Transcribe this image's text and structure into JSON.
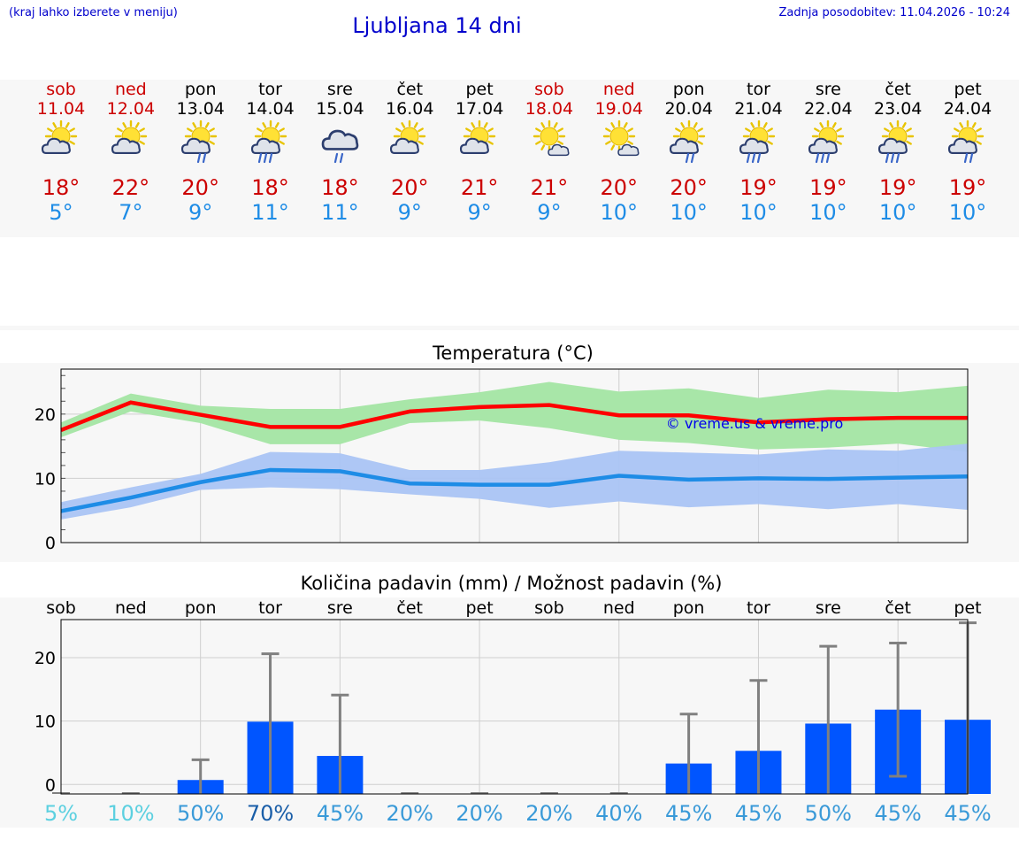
{
  "header": {
    "hint": "(kraj lahko izberete v meniju)",
    "title": "Ljubljana 14 dni",
    "updated_label": "Zadnja posodobitev:",
    "updated_value": "11.04.2026 - 10:24"
  },
  "colors": {
    "accent_blue": "#0000cc",
    "max_temp": "#cc0000",
    "min_temp": "#1e8ce6",
    "max_band": "#a8e6a8",
    "min_band": "#aac4f4",
    "bars": "#0055ff",
    "errorbar": "#808080",
    "watermark": "#0000ee"
  },
  "days": [
    {
      "dow": "sob",
      "date": "11.04",
      "weekend": true,
      "icon": "sun-cloud-icon",
      "tmax": "18°",
      "tmin": "5°",
      "precip_prob": "5%"
    },
    {
      "dow": "ned",
      "date": "12.04",
      "weekend": true,
      "icon": "sun-cloud-icon",
      "tmax": "22°",
      "tmin": "7°",
      "precip_prob": "10%"
    },
    {
      "dow": "pon",
      "date": "13.04",
      "weekend": false,
      "icon": "sun-cloud-rain-icon",
      "tmax": "20°",
      "tmin": "9°",
      "precip_prob": "50%"
    },
    {
      "dow": "tor",
      "date": "14.04",
      "weekend": false,
      "icon": "sun-cloud-heavy-rain-icon",
      "tmax": "18°",
      "tmin": "11°",
      "precip_prob": "70%"
    },
    {
      "dow": "sre",
      "date": "15.04",
      "weekend": false,
      "icon": "cloud-rain-icon",
      "tmax": "18°",
      "tmin": "11°",
      "precip_prob": "45%"
    },
    {
      "dow": "čet",
      "date": "16.04",
      "weekend": false,
      "icon": "sun-cloud-icon",
      "tmax": "20°",
      "tmin": "9°",
      "precip_prob": "20%"
    },
    {
      "dow": "pet",
      "date": "17.04",
      "weekend": false,
      "icon": "sun-cloud-icon",
      "tmax": "21°",
      "tmin": "9°",
      "precip_prob": "20%"
    },
    {
      "dow": "sob",
      "date": "18.04",
      "weekend": true,
      "icon": "sun-cloud-small-icon",
      "tmax": "21°",
      "tmin": "9°",
      "precip_prob": "20%"
    },
    {
      "dow": "ned",
      "date": "19.04",
      "weekend": true,
      "icon": "sun-cloud-small-icon",
      "tmax": "20°",
      "tmin": "10°",
      "precip_prob": "40%"
    },
    {
      "dow": "pon",
      "date": "20.04",
      "weekend": false,
      "icon": "sun-cloud-rain-icon",
      "tmax": "20°",
      "tmin": "10°",
      "precip_prob": "45%"
    },
    {
      "dow": "tor",
      "date": "21.04",
      "weekend": false,
      "icon": "sun-cloud-heavy-rain-icon",
      "tmax": "19°",
      "tmin": "10°",
      "precip_prob": "45%"
    },
    {
      "dow": "sre",
      "date": "22.04",
      "weekend": false,
      "icon": "sun-cloud-heavy-rain-icon",
      "tmax": "19°",
      "tmin": "10°",
      "precip_prob": "50%"
    },
    {
      "dow": "čet",
      "date": "23.04",
      "weekend": false,
      "icon": "sun-cloud-heavy-rain-icon",
      "tmax": "19°",
      "tmin": "10°",
      "precip_prob": "45%"
    },
    {
      "dow": "pet",
      "date": "24.04",
      "weekend": false,
      "icon": "sun-cloud-rain-icon",
      "tmax": "19°",
      "tmin": "10°",
      "precip_prob": "45%"
    }
  ],
  "chart_data": [
    {
      "type": "line",
      "title": "Temperatura (°C)",
      "xlabel": "",
      "ylabel": "",
      "ylim": [
        0,
        27
      ],
      "yticks": [
        0,
        10,
        20
      ],
      "ytick_labels": [
        "0",
        "10",
        "20"
      ],
      "watermark": "© vreme.us & vreme.pro",
      "categories": [
        "11.04",
        "12.04",
        "13.04",
        "14.04",
        "15.04",
        "16.04",
        "17.04",
        "18.04",
        "19.04",
        "20.04",
        "21.04",
        "22.04",
        "23.04",
        "24.04"
      ],
      "series": [
        {
          "name": "max",
          "values": [
            17.5,
            21.8,
            19.9,
            18.0,
            18.0,
            20.4,
            21.1,
            21.4,
            19.8,
            19.8,
            18.7,
            19.2,
            19.4,
            19.4
          ],
          "band_low": [
            16.4,
            20.4,
            18.6,
            15.3,
            15.3,
            18.6,
            19.0,
            17.8,
            16.0,
            15.5,
            14.5,
            14.8,
            15.4,
            14.1
          ],
          "band_high": [
            18.7,
            23.2,
            21.3,
            20.8,
            20.8,
            22.3,
            23.4,
            25.0,
            23.5,
            24.0,
            22.5,
            23.8,
            23.4,
            24.4
          ]
        },
        {
          "name": "min",
          "values": [
            4.9,
            7.0,
            9.4,
            11.3,
            11.1,
            9.2,
            9.0,
            9.0,
            10.4,
            9.8,
            10.0,
            9.9,
            10.1,
            10.3
          ],
          "band_low": [
            3.6,
            5.5,
            8.2,
            8.6,
            8.3,
            7.5,
            6.8,
            5.4,
            6.4,
            5.5,
            6.0,
            5.2,
            6.0,
            5.1
          ],
          "band_high": [
            6.3,
            8.6,
            10.7,
            14.1,
            13.9,
            11.3,
            11.3,
            12.5,
            14.3,
            14.0,
            13.7,
            14.5,
            14.3,
            15.4
          ]
        }
      ]
    },
    {
      "type": "bar",
      "title": "Količina padavin (mm) / Možnost padavin (%)",
      "xlabel": "",
      "ylabel": "",
      "ylim": [
        -1.5,
        26
      ],
      "yticks": [
        0,
        10,
        20
      ],
      "ytick_labels": [
        "0",
        "10",
        "20"
      ],
      "categories": [
        "sob",
        "ned",
        "pon",
        "tor",
        "sre",
        "čet",
        "pet",
        "sob",
        "ned",
        "pon",
        "tor",
        "sre",
        "čet",
        "pet"
      ],
      "values": [
        0,
        0,
        0.7,
        9.9,
        4.5,
        0,
        0,
        0,
        0,
        3.3,
        5.3,
        9.6,
        11.8,
        10.2
      ],
      "error_low": [
        0,
        0,
        0,
        0,
        0,
        0,
        0,
        0,
        0,
        0,
        0,
        0,
        1.3,
        0
      ],
      "error_high": [
        0,
        0,
        3.9,
        20.6,
        14.1,
        0,
        0,
        0,
        0,
        11.1,
        16.4,
        21.8,
        22.3,
        25.5
      ],
      "probabilities": [
        5,
        10,
        50,
        70,
        45,
        20,
        20,
        20,
        40,
        45,
        45,
        50,
        45,
        45
      ]
    }
  ]
}
